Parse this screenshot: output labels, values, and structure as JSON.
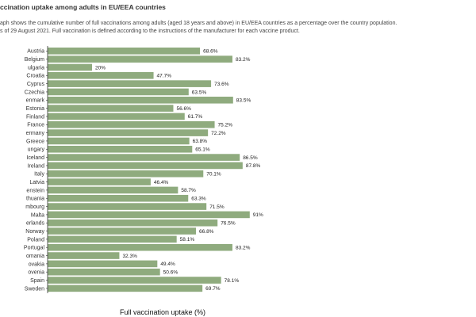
{
  "header": {
    "title": "ccination uptake among adults in EU/EEA countries",
    "description_line1": "aph shows the cumulative number of full vaccinations among adults (aged 18 years and above) in EU/EEA countries as a percentage over the country population.",
    "description_line2": "s of 29 August 2021. Full vaccination is defined according to the instructions of the manufacturer for each vaccine product."
  },
  "colors": {
    "bar": "#8fab7e",
    "axis": "#333333"
  },
  "chart_data": {
    "type": "bar",
    "orientation": "horizontal",
    "title": "ccination uptake among adults in EU/EEA countries",
    "xlabel": "Full vaccination uptake (%)",
    "ylabel": "",
    "xlim": [
      0,
      100
    ],
    "grid": false,
    "categories": [
      "Austria",
      "Belgium",
      "ulgaria",
      "Croatia",
      "Cyprus",
      "Czechia",
      "enmark",
      "Estonia",
      "Finland",
      "France",
      "ermany",
      "Greece",
      "ungary",
      "Iceland",
      "Ireland",
      "Italy",
      "Latvia",
      "enstein",
      "thuania",
      "mbourg",
      "Malta",
      "erlands",
      "Norway",
      "Poland",
      "Portugal",
      "omania",
      "ovakia",
      "ovenia",
      "Spain",
      "Sweden"
    ],
    "values": [
      68.6,
      83.2,
      20,
      47.7,
      73.6,
      63.5,
      83.5,
      56.6,
      61.7,
      75.2,
      72.2,
      63.8,
      65.1,
      86.5,
      87.8,
      70.1,
      46.4,
      58.7,
      63.3,
      71.5,
      91,
      76.5,
      66.8,
      58.1,
      83.2,
      32.3,
      49.4,
      50.6,
      78.1,
      69.7
    ],
    "value_labels": [
      "68.6%",
      "83.2%",
      "20%",
      "47.7%",
      "73.6%",
      "63.5%",
      "83.5%",
      "56.6%",
      "61.7%",
      "75.2%",
      "72.2%",
      "63.8%",
      "65.1%",
      "86.5%",
      "87.8%",
      "70.1%",
      "46.4%",
      "58.7%",
      "63.3%",
      "71.5%",
      "91%",
      "76.5%",
      "66.8%",
      "58.1%",
      "83.2%",
      "32.3%",
      "49.4%",
      "50.6%",
      "78.1%",
      "69.7%"
    ]
  }
}
